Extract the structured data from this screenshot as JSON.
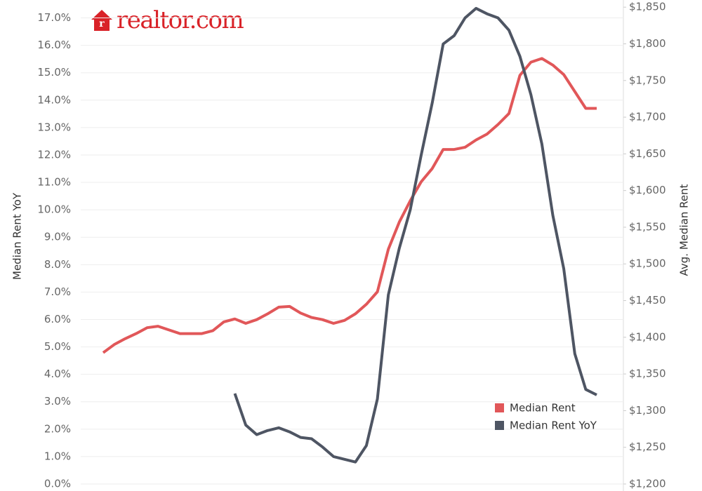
{
  "chart_data": {
    "type": "line",
    "logo": "realtor.com",
    "ylabel": "Median Rent YoY",
    "y2label": "Avg. Median Rent",
    "categories": [
      null,
      null,
      null,
      null,
      null,
      null,
      null,
      null,
      null,
      null,
      null,
      null,
      null,
      null,
      null,
      null,
      null,
      null,
      null,
      null,
      null,
      null,
      null,
      null,
      null,
      null,
      null,
      null,
      null,
      null,
      null,
      null,
      null,
      null,
      null,
      null,
      null,
      null,
      null,
      null,
      null,
      null,
      null,
      null,
      null,
      null
    ],
    "series": [
      {
        "name": "Median Rent",
        "color": "#e15759",
        "axis": "y2",
        "values": [
          1379,
          1390,
          1398,
          1405,
          1413,
          1415,
          1410,
          1405,
          1405,
          1405,
          1409,
          1421,
          1425,
          1419,
          1424,
          1432,
          1441,
          1442,
          1433,
          1427,
          1424,
          1419,
          1423,
          1432,
          1445,
          1462,
          1520,
          1557,
          1586,
          1612,
          1630,
          1656,
          1656,
          1659,
          1669,
          1677,
          1690,
          1705,
          1757,
          1775,
          1780,
          1771,
          1758,
          1735,
          1712,
          1712
        ]
      },
      {
        "name": "Median Rent YoY",
        "color": "#4e5563",
        "values": [
          null,
          null,
          null,
          null,
          null,
          null,
          null,
          null,
          null,
          null,
          null,
          null,
          3.3,
          2.15,
          1.8,
          1.95,
          2.05,
          1.9,
          1.7,
          1.65,
          1.35,
          1.0,
          0.9,
          0.8,
          1.4,
          3.1,
          6.9,
          8.6,
          10.0,
          12.0,
          13.9,
          16.05,
          16.35,
          17.0,
          17.35,
          17.15,
          17.0,
          16.55,
          15.6,
          14.2,
          12.4,
          9.8,
          7.85,
          4.75,
          3.45,
          3.25
        ]
      }
    ],
    "ylim": [
      0,
      17.5
    ],
    "yticks": [
      {
        "value": 0,
        "label": "0.0%"
      },
      {
        "value": 1,
        "label": "1.0%"
      },
      {
        "value": 2,
        "label": "2.0%"
      },
      {
        "value": 3,
        "label": "3.0%"
      },
      {
        "value": 4,
        "label": "4.0%"
      },
      {
        "value": 5,
        "label": "5.0%"
      },
      {
        "value": 6,
        "label": "6.0%"
      },
      {
        "value": 7,
        "label": "7.0%"
      },
      {
        "value": 8,
        "label": "8.0%"
      },
      {
        "value": 9,
        "label": "9.0%"
      },
      {
        "value": 10,
        "label": "10.0%"
      },
      {
        "value": 11,
        "label": "11.0%"
      },
      {
        "value": 12,
        "label": "12.0%"
      },
      {
        "value": 13,
        "label": "13.0%"
      },
      {
        "value": 14,
        "label": "14.0%"
      },
      {
        "value": 15,
        "label": "15.0%"
      },
      {
        "value": 16,
        "label": "16.0%"
      },
      {
        "value": 17,
        "label": "17.0%"
      }
    ],
    "y2lim": [
      1200,
      1854
    ],
    "y2ticks": [
      {
        "value": 1200,
        "label": "$1,200"
      },
      {
        "value": 1250,
        "label": "$1,250"
      },
      {
        "value": 1300,
        "label": "$1,300"
      },
      {
        "value": 1350,
        "label": "$1,350"
      },
      {
        "value": 1400,
        "label": "$1,400"
      },
      {
        "value": 1450,
        "label": "$1,450"
      },
      {
        "value": 1500,
        "label": "$1,500"
      },
      {
        "value": 1550,
        "label": "$1,550"
      },
      {
        "value": 1600,
        "label": "$1,600"
      },
      {
        "value": 1650,
        "label": "$1,650"
      },
      {
        "value": 1700,
        "label": "$1,700"
      },
      {
        "value": 1750,
        "label": "$1,750"
      },
      {
        "value": 1800,
        "label": "$1,800"
      },
      {
        "value": 1850,
        "label": "$1,850"
      }
    ],
    "grid": true,
    "legend": "bottom-right"
  }
}
